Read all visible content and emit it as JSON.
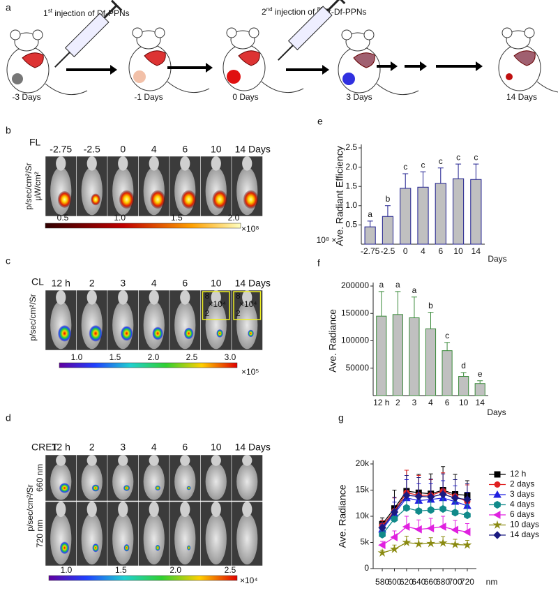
{
  "panels": {
    "a": {
      "label": "a",
      "injections": [
        [
          {
            "text": "1"
          },
          {
            "text": "st",
            "sup": true
          },
          {
            "text": " injection of Df-PPNs"
          }
        ],
        [
          {
            "text": "2"
          },
          {
            "text": "nd",
            "sup": true
          },
          {
            "text": " injection of "
          },
          {
            "text": "89",
            "sup": true
          },
          {
            "text": "Zr-Df-PPNs"
          }
        ]
      ],
      "days": [
        "-3 Days",
        "-1 Days",
        "0 Days",
        "3 Days",
        "14 Days"
      ]
    },
    "b": {
      "label": "b",
      "mode": "FL",
      "columns": [
        "-2.75",
        "-2.5",
        "0",
        "4",
        "6",
        "10",
        "14 Days"
      ],
      "unit": [
        "p/sec/cm²/Sr",
        "μW/cm²"
      ],
      "colorbar": [
        "0.5",
        "1.0",
        "1.5",
        "2.0"
      ],
      "scale": "×10⁸"
    },
    "c": {
      "label": "c",
      "mode": "CL",
      "columns": [
        "12 h",
        "2",
        "3",
        "4",
        "6",
        "10",
        "14 Days"
      ],
      "unit": "p/sec/cm²/Sr",
      "insets": [
        {
          "top": "8",
          "scale": "×10⁴",
          "bottom": "2"
        },
        {
          "top": "8",
          "scale": "×10⁴",
          "bottom": "2"
        }
      ],
      "colorbar": [
        "1.0",
        "1.5",
        "2.0",
        "2.5",
        "3.0"
      ],
      "scale": "×10⁵"
    },
    "d": {
      "label": "d",
      "mode": "CRET",
      "columns": [
        "12 h",
        "2",
        "3",
        "4",
        "6",
        "10",
        "14 Days"
      ],
      "rows": [
        "660 nm",
        "720 nm"
      ],
      "unit": "p/sec/cm²/Sr",
      "colorbar": [
        "1.0",
        "1.5",
        "2.0",
        "2.5"
      ],
      "scale": "×10⁴"
    }
  },
  "chart_data": [
    {
      "panel": "e",
      "type": "bar",
      "ylabel": "Ave. Radiant Efficiency",
      "yunit": "10⁸ ×",
      "xlabel": "Days",
      "categories": [
        "-2.75",
        "-2.5",
        "0",
        "4",
        "6",
        "10",
        "14"
      ],
      "values": [
        0.45,
        0.72,
        1.45,
        1.48,
        1.58,
        1.7,
        1.68
      ],
      "errors": [
        0.15,
        0.28,
        0.38,
        0.4,
        0.4,
        0.38,
        0.4
      ],
      "letters": [
        "a",
        "b",
        "c",
        "c",
        "c",
        "c",
        "c"
      ],
      "color": "#c0c0c0",
      "edgecolor": "#1f1f8f",
      "ylim": [
        0,
        2.5
      ],
      "yticks": [
        0.5,
        {
          "value": 1,
          "label": "1.0"
        },
        1.5,
        {
          "value": 2,
          "label": "2.0"
        },
        2.5
      ]
    },
    {
      "panel": "f",
      "type": "bar",
      "ylabel": "Ave. Radiance",
      "xlabel": "Days",
      "categories": [
        "12 h",
        "2",
        "3",
        "4",
        "6",
        "10",
        "14"
      ],
      "values": [
        145000,
        148000,
        142000,
        122000,
        82000,
        35000,
        22000
      ],
      "errors": [
        45000,
        42000,
        38000,
        30000,
        15000,
        7000,
        5000
      ],
      "letters": [
        "a",
        "a",
        "a",
        "b",
        "c",
        "d",
        "e"
      ],
      "color": "#c0c0c0",
      "edgecolor": "#3a8a3a",
      "ylim": [
        0,
        200000
      ],
      "yticks": [
        50000,
        100000,
        150000,
        200000
      ]
    },
    {
      "panel": "g",
      "type": "line",
      "ylabel": "Ave. Radiance",
      "xlabel": "nm",
      "x": [
        580,
        600,
        620,
        640,
        660,
        680,
        700,
        720
      ],
      "xlim": [
        565,
        735
      ],
      "xticks": [
        580,
        600,
        620,
        640,
        660,
        680,
        700,
        720
      ],
      "ylim": [
        0,
        20000
      ],
      "yticks": [
        0,
        {
          "value": 5000,
          "label": "5k"
        },
        {
          "value": 10000,
          "label": "10k"
        },
        {
          "value": 15000,
          "label": "15k"
        },
        {
          "value": 20000,
          "label": "20k"
        }
      ],
      "legend": "right",
      "series": [
        {
          "name": "12 h",
          "color": "#000000",
          "marker": "square",
          "values": [
            8500,
            11500,
            14800,
            14500,
            14300,
            15000,
            14200,
            14000
          ],
          "errors": [
            1200,
            3500,
            4000,
            3500,
            3800,
            4500,
            3800,
            2800
          ]
        },
        {
          "name": "2 days",
          "color": "#e02020",
          "marker": "circle",
          "values": [
            8200,
            11000,
            14500,
            14000,
            14000,
            14800,
            13800,
            12800
          ],
          "errors": [
            1000,
            2500,
            4300,
            3800,
            3000,
            3500,
            3200,
            3200
          ]
        },
        {
          "name": "3 days",
          "color": "#2020e0",
          "marker": "triangle",
          "values": [
            7500,
            10500,
            13500,
            13000,
            13200,
            13500,
            12800,
            12000
          ],
          "errors": [
            900,
            2200,
            3500,
            3200,
            3000,
            3300,
            3000,
            2600
          ]
        },
        {
          "name": "4 days",
          "color": "#108a8a",
          "marker": "hexagon",
          "values": [
            6500,
            9500,
            11600,
            11000,
            11200,
            11400,
            10700,
            10200
          ],
          "errors": [
            800,
            1800,
            2500,
            2300,
            2200,
            2400,
            2100,
            2000
          ]
        },
        {
          "name": "6 days",
          "color": "#e020e0",
          "marker": "tri-left",
          "values": [
            4500,
            6000,
            8000,
            7500,
            7700,
            8000,
            7400,
            7000
          ],
          "errors": [
            700,
            1200,
            2000,
            1800,
            1900,
            2000,
            1800,
            1600
          ]
        },
        {
          "name": "10 days",
          "color": "#8a8a10",
          "marker": "star",
          "values": [
            3000,
            3700,
            5000,
            4700,
            4800,
            4900,
            4600,
            4500
          ],
          "errors": [
            500,
            800,
            1200,
            1100,
            1100,
            1200,
            1000,
            900
          ]
        },
        {
          "name": "14 days",
          "color": "#1a1a80",
          "marker": "diamond",
          "values": [
            7800,
            10800,
            14000,
            13800,
            13700,
            14200,
            13500,
            13200
          ],
          "errors": [
            1000,
            2800,
            3800,
            3600,
            3400,
            3900,
            3500,
            3000
          ]
        }
      ]
    }
  ]
}
